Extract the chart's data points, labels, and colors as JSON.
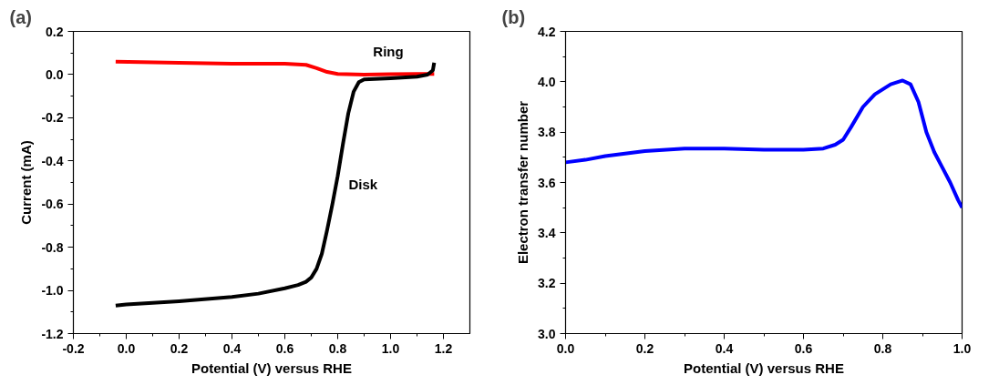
{
  "chart_data": [
    {
      "type": "line",
      "title": "(a)",
      "xlabel": "Potential (V) versus RHE",
      "ylabel": "Current (mA)",
      "xlim": [
        -0.2,
        1.3
      ],
      "ylim": [
        -1.2,
        0.2
      ],
      "xticks": [
        {
          "value": -0.2,
          "label": "-0.2"
        },
        {
          "value": 0,
          "label": "0.0"
        },
        {
          "value": 0.2,
          "label": "0.2"
        },
        {
          "value": 0.4,
          "label": "0.4"
        },
        {
          "value": 0.6,
          "label": "0.6"
        },
        {
          "value": 0.8,
          "label": "0.8"
        },
        {
          "value": 1.0,
          "label": "1.0"
        },
        {
          "value": 1.2,
          "label": "1.2"
        }
      ],
      "yticks": [
        {
          "value": -1.2,
          "label": "-1.2"
        },
        {
          "value": -1.0,
          "label": "-1.0"
        },
        {
          "value": -0.8,
          "label": "-0.8"
        },
        {
          "value": -0.6,
          "label": "-0.6"
        },
        {
          "value": -0.4,
          "label": "-0.4"
        },
        {
          "value": -0.2,
          "label": "-0.2"
        },
        {
          "value": 0,
          "label": "0.0"
        },
        {
          "value": 0.2,
          "label": "0.2"
        }
      ],
      "grid": false,
      "legend": false,
      "marker": "none",
      "line_style": "solid",
      "series": [
        {
          "name": "Ring",
          "color": "#ff0000",
          "x": [
            -0.04,
            0.2,
            0.4,
            0.6,
            0.68,
            0.72,
            0.76,
            0.8,
            0.9,
            1.0,
            1.1,
            1.165
          ],
          "values": [
            0.06,
            0.055,
            0.05,
            0.05,
            0.045,
            0.03,
            0.012,
            0.003,
            0.0,
            0.002,
            0.003,
            0.003
          ]
        },
        {
          "name": "Disk",
          "color": "#000000",
          "x": [
            -0.04,
            0.0,
            0.2,
            0.4,
            0.5,
            0.6,
            0.65,
            0.68,
            0.7,
            0.72,
            0.74,
            0.76,
            0.78,
            0.8,
            0.82,
            0.84,
            0.86,
            0.88,
            0.9,
            1.0,
            1.1,
            1.14,
            1.16,
            1.165
          ],
          "values": [
            -1.07,
            -1.065,
            -1.05,
            -1.03,
            -1.015,
            -0.99,
            -0.975,
            -0.96,
            -0.94,
            -0.9,
            -0.83,
            -0.72,
            -0.6,
            -0.47,
            -0.32,
            -0.18,
            -0.08,
            -0.035,
            -0.022,
            -0.017,
            -0.01,
            0.0,
            0.02,
            0.055
          ]
        }
      ]
    },
    {
      "type": "line",
      "title": "(b)",
      "xlabel": "Potential (V) versus RHE",
      "ylabel": "Electron transfer number",
      "xlim": [
        0,
        1
      ],
      "ylim": [
        3.0,
        4.2
      ],
      "xticks": [
        {
          "value": 0,
          "label": "0.0"
        },
        {
          "value": 0.2,
          "label": "0.2"
        },
        {
          "value": 0.4,
          "label": "0.4"
        },
        {
          "value": 0.6,
          "label": "0.6"
        },
        {
          "value": 0.8,
          "label": "0.8"
        },
        {
          "value": 1.0,
          "label": "1.0"
        }
      ],
      "yticks": [
        {
          "value": 3.0,
          "label": "3.0"
        },
        {
          "value": 3.2,
          "label": "3.2"
        },
        {
          "value": 3.4,
          "label": "3.4"
        },
        {
          "value": 3.6,
          "label": "3.6"
        },
        {
          "value": 3.8,
          "label": "3.8"
        },
        {
          "value": 4.0,
          "label": "4.0"
        },
        {
          "value": 4.2,
          "label": "4.2"
        }
      ],
      "grid": false,
      "legend": false,
      "marker": "none",
      "line_style": "solid",
      "series": [
        {
          "color": "#0000ff",
          "x": [
            0,
            0.05,
            0.1,
            0.2,
            0.3,
            0.4,
            0.5,
            0.6,
            0.65,
            0.68,
            0.7,
            0.72,
            0.75,
            0.78,
            0.82,
            0.85,
            0.87,
            0.89,
            0.91,
            0.93,
            0.95,
            0.97,
            0.99,
            1.0
          ],
          "values": [
            3.68,
            3.69,
            3.705,
            3.725,
            3.735,
            3.735,
            3.73,
            3.73,
            3.735,
            3.75,
            3.77,
            3.82,
            3.9,
            3.95,
            3.99,
            4.005,
            3.99,
            3.92,
            3.8,
            3.72,
            3.66,
            3.6,
            3.53,
            3.5
          ]
        }
      ]
    }
  ]
}
